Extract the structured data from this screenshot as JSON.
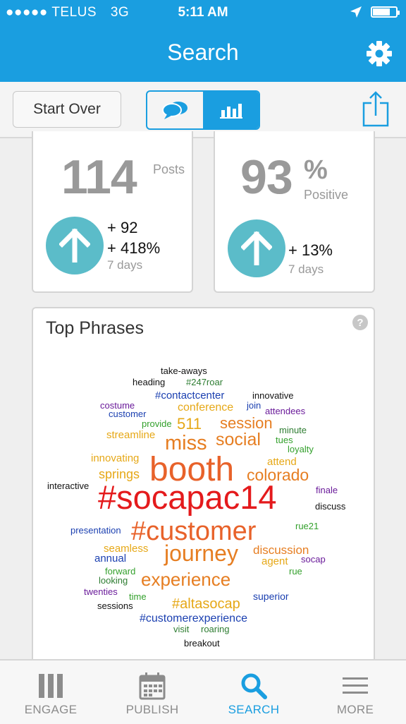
{
  "status_bar": {
    "carrier": "●●●●● TELUS",
    "network": "3G",
    "time": "5:11 AM",
    "battery_level": 0.75
  },
  "nav": {
    "title": "Search",
    "settings_icon": "gear-icon"
  },
  "toolbar": {
    "start_over_label": "Start Over",
    "segments": [
      {
        "icon": "chat-bubbles-icon",
        "active": false
      },
      {
        "icon": "bar-chart-icon",
        "active": true
      }
    ],
    "share_icon": "share-icon"
  },
  "stats": {
    "posts": {
      "value": "114",
      "unit": "Posts",
      "change": "+ 92",
      "change_pct": "+ 418%",
      "period": "7 days"
    },
    "sentiment": {
      "value": "93",
      "unit_symbol": "%",
      "unit": "Positive",
      "change_pct": "+ 13%",
      "period": "7 days"
    }
  },
  "top_phrases": {
    "title": "Top Phrases",
    "help_label": "?",
    "words": [
      {
        "text": "take-aways",
        "color": "#111111"
      },
      {
        "text": "heading",
        "color": "#111111"
      },
      {
        "text": "#247roar",
        "color": "#2e7d32"
      },
      {
        "text": "#contactcenter",
        "color": "#1a3fb0"
      },
      {
        "text": "innovative",
        "color": "#111111"
      },
      {
        "text": "costume",
        "color": "#6a1b9a"
      },
      {
        "text": "customer",
        "color": "#1a3fb0"
      },
      {
        "text": "conference",
        "color": "#e6a817"
      },
      {
        "text": "join",
        "color": "#1a3fb0"
      },
      {
        "text": "attendees",
        "color": "#6a1b9a"
      },
      {
        "text": "provide",
        "color": "#33a02c"
      },
      {
        "text": "511",
        "color": "#e6a817"
      },
      {
        "text": "session",
        "color": "#e67e22"
      },
      {
        "text": "minute",
        "color": "#2e7d32"
      },
      {
        "text": "streamline",
        "color": "#e6a817"
      },
      {
        "text": "miss",
        "color": "#e67e22"
      },
      {
        "text": "social",
        "color": "#e67e22"
      },
      {
        "text": "tues",
        "color": "#33a02c"
      },
      {
        "text": "loyalty",
        "color": "#33a02c"
      },
      {
        "text": "innovating",
        "color": "#e6a817"
      },
      {
        "text": "attend",
        "color": "#e6a817"
      },
      {
        "text": "booth",
        "color": "#e8622a"
      },
      {
        "text": "springs",
        "color": "#e6a817"
      },
      {
        "text": "colorado",
        "color": "#e67e22"
      },
      {
        "text": "interactive",
        "color": "#111111"
      },
      {
        "text": "#socapac14",
        "color": "#e41a1c"
      },
      {
        "text": "finale",
        "color": "#6a1b9a"
      },
      {
        "text": "discuss",
        "color": "#111111"
      },
      {
        "text": "presentation",
        "color": "#1a3fb0"
      },
      {
        "text": "#customer",
        "color": "#e8622a"
      },
      {
        "text": "rue21",
        "color": "#33a02c"
      },
      {
        "text": "seamless",
        "color": "#e6a817"
      },
      {
        "text": "journey",
        "color": "#e67e22"
      },
      {
        "text": "discussion",
        "color": "#e67e22"
      },
      {
        "text": "annual",
        "color": "#1a3fb0"
      },
      {
        "text": "agent",
        "color": "#e6a817"
      },
      {
        "text": "socap",
        "color": "#6a1b9a"
      },
      {
        "text": "forward",
        "color": "#33a02c"
      },
      {
        "text": "looking",
        "color": "#2e7d32"
      },
      {
        "text": "rue",
        "color": "#33a02c"
      },
      {
        "text": "experience",
        "color": "#e67e22"
      },
      {
        "text": "twenties",
        "color": "#6a1b9a"
      },
      {
        "text": "time",
        "color": "#33a02c"
      },
      {
        "text": "superior",
        "color": "#1a3fb0"
      },
      {
        "text": "sessions",
        "color": "#111111"
      },
      {
        "text": "#altasocap",
        "color": "#e6a817"
      },
      {
        "text": "#customerexperience",
        "color": "#1a3fb0"
      },
      {
        "text": "visit",
        "color": "#2e7d32"
      },
      {
        "text": "roaring",
        "color": "#2e7d32"
      },
      {
        "text": "breakout",
        "color": "#111111"
      }
    ]
  },
  "tabs": [
    {
      "label": "ENGAGE",
      "icon": "engage-columns-icon",
      "active": false
    },
    {
      "label": "PUBLISH",
      "icon": "calendar-icon",
      "active": false
    },
    {
      "label": "SEARCH",
      "icon": "search-icon",
      "active": true
    },
    {
      "label": "MORE",
      "icon": "menu-icon",
      "active": false
    }
  ],
  "colors": {
    "accent": "#1a9ee0",
    "arrow_circle": "#5bbcc9",
    "stat_gray": "#999999"
  }
}
